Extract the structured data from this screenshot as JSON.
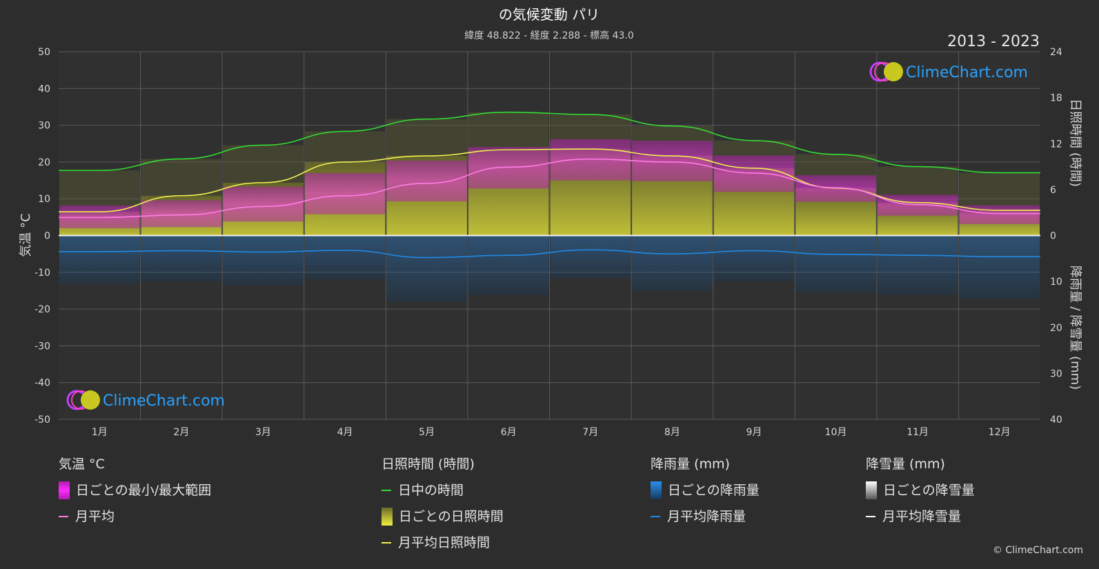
{
  "title": "の気候変動 パリ",
  "subtitle": "緯度 48.822 - 経度 2.288 - 標高 43.0",
  "years": "2013 - 2023",
  "brand": "ClimeChart.com",
  "copyright": "© ClimeChart.com",
  "axes": {
    "left_title": "気温 °C",
    "right_top_title": "日照時間 (時間)",
    "right_bottom_title": "降雨量 / 降雪量 (mm)"
  },
  "legend": {
    "temp": {
      "title": "気温 °C",
      "range": "日ごとの最小/最大範囲",
      "avg": "月平均"
    },
    "sun": {
      "title": "日照時間 (時間)",
      "daylight": "日中の時間",
      "daily": "日ごとの日照時間",
      "avg": "月平均日照時間"
    },
    "rain": {
      "title": "降雨量 (mm)",
      "daily": "日ごとの降雨量",
      "avg": "月平均降雨量"
    },
    "snow": {
      "title": "降雪量 (mm)",
      "daily": "日ごとの降雪量",
      "avg": "月平均降雪量"
    }
  },
  "colors": {
    "temp_range": "#e81ee8",
    "temp_avg": "#ff7de6",
    "daylight": "#33dd33",
    "sunshine_bar": "#a8a82a",
    "sunshine_avg": "#f0f050",
    "rain_bar": "#1f6fb8",
    "rain_avg": "#1f8ae6",
    "snow_bar": "#9a9a9a",
    "snow_avg": "#ffffff"
  },
  "chart_data": {
    "type": "line",
    "categories": [
      "1月",
      "2月",
      "3月",
      "4月",
      "5月",
      "6月",
      "7月",
      "8月",
      "9月",
      "10月",
      "11月",
      "12月"
    ],
    "y_left": {
      "label": "気温 °C",
      "min": -50,
      "max": 50,
      "ticks": [
        50,
        40,
        30,
        20,
        10,
        0,
        -10,
        -20,
        -30,
        -40,
        -50
      ]
    },
    "y_right_top": {
      "label": "日照時間 (時間)",
      "min": 0,
      "max": 24,
      "ticks": [
        24,
        18,
        12,
        6,
        0
      ]
    },
    "y_right_bottom": {
      "label": "降雨量 / 降雪量 (mm)",
      "min": 0,
      "max": 40,
      "ticks": [
        0,
        10,
        20,
        30,
        40
      ]
    },
    "grid": true,
    "series": [
      {
        "name": "日中の時間",
        "axis": "sun",
        "values": [
          8.5,
          10.0,
          11.8,
          13.6,
          15.2,
          16.1,
          15.8,
          14.3,
          12.4,
          10.6,
          9.0,
          8.2
        ]
      },
      {
        "name": "月平均日照時間",
        "axis": "sun",
        "values": [
          3.1,
          5.2,
          6.9,
          9.6,
          10.4,
          11.2,
          11.3,
          10.4,
          8.8,
          6.2,
          4.3,
          3.3
        ]
      },
      {
        "name": "月平均",
        "axis": "temp",
        "values": [
          4.9,
          5.6,
          7.9,
          10.8,
          14.2,
          18.6,
          20.8,
          20.0,
          17.0,
          13.0,
          8.4,
          6.0
        ]
      },
      {
        "name": "月平均降雨量",
        "axis": "precip",
        "values": [
          3.5,
          3.3,
          3.6,
          3.2,
          4.8,
          4.3,
          3.1,
          4.0,
          3.3,
          4.1,
          4.3,
          4.6
        ]
      },
      {
        "name": "月平均降雪量",
        "axis": "precip",
        "values": [
          0,
          0,
          0,
          0,
          0,
          0,
          0,
          0,
          0,
          0,
          0,
          0
        ]
      },
      {
        "name": "日ごとの最小/最大範囲",
        "axis": "temp",
        "min": [
          2.0,
          2.3,
          3.8,
          5.8,
          9.3,
          12.8,
          15.0,
          14.8,
          11.9,
          9.2,
          5.4,
          3.1
        ],
        "max": [
          8.2,
          9.6,
          13.3,
          17.0,
          20.4,
          24.1,
          26.2,
          25.8,
          21.8,
          16.4,
          11.1,
          8.2
        ]
      }
    ]
  }
}
